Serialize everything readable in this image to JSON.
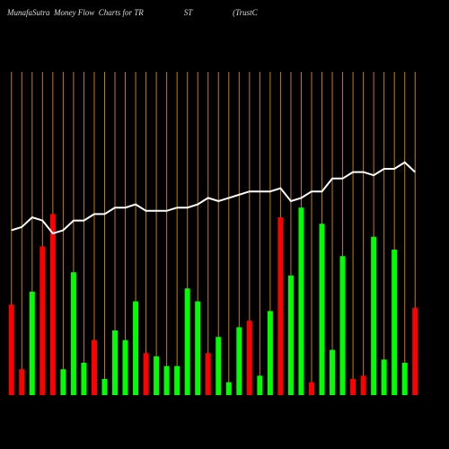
{
  "chart_data": {
    "type": "bar",
    "title": "MunafaSutra  Money Flow  Charts for TR                    ST                    (TrustC",
    "ylim": [
      0,
      100
    ],
    "grid": true,
    "grid_color": "#c87a12",
    "values": [
      28,
      8,
      32,
      46,
      56,
      8,
      38,
      10,
      17,
      5,
      20,
      17,
      29,
      13,
      12,
      9,
      9,
      33,
      29,
      13,
      18,
      4,
      21,
      23,
      6,
      26,
      55,
      37,
      58,
      4,
      53,
      14,
      43,
      5,
      6,
      49,
      11,
      45,
      10,
      27
    ],
    "bar_colors": [
      "#ff0000",
      "#ff0000",
      "#00ff00",
      "#ff0000",
      "#ff0000",
      "#00ff00",
      "#00ff00",
      "#00ff00",
      "#ff0000",
      "#00ff00",
      "#00ff00",
      "#00ff00",
      "#00ff00",
      "#ff0000",
      "#00ff00",
      "#00ff00",
      "#00ff00",
      "#00ff00",
      "#00ff00",
      "#ff0000",
      "#00ff00",
      "#00ff00",
      "#00ff00",
      "#ff0000",
      "#00ff00",
      "#00ff00",
      "#ff0000",
      "#00ff00",
      "#00ff00",
      "#ff0000",
      "#00ff00",
      "#00ff00",
      "#00ff00",
      "#ff0000",
      "#ff0000",
      "#00ff00",
      "#00ff00",
      "#00ff00",
      "#00ff00",
      "#ff0000"
    ],
    "line_values": [
      51,
      52,
      55,
      54,
      50,
      51,
      54,
      54,
      56,
      56,
      58,
      58,
      59,
      57,
      57,
      57,
      58,
      58,
      59,
      61,
      60,
      61,
      62,
      63,
      63,
      63,
      64,
      60,
      61,
      63,
      63,
      67,
      67,
      69,
      69,
      68,
      70,
      70,
      72,
      69
    ],
    "line_color": "#ffffff"
  }
}
